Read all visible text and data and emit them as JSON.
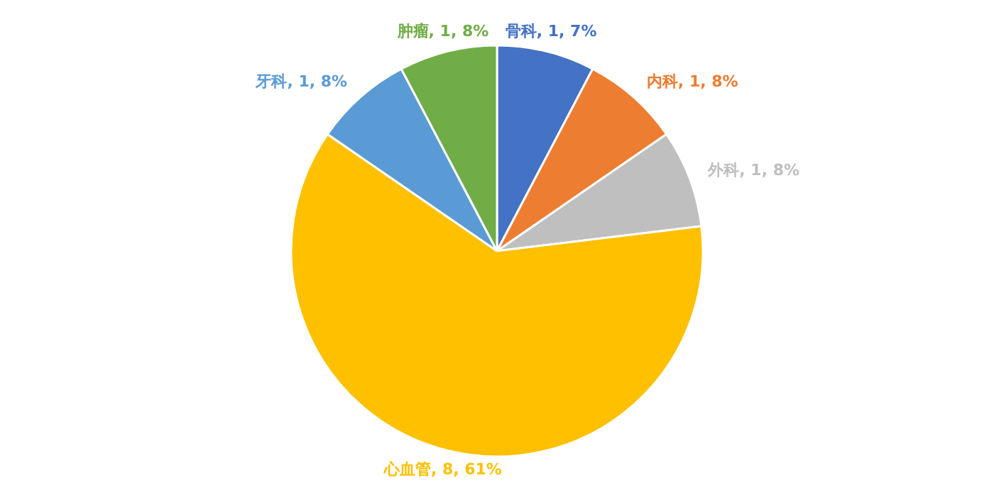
{
  "chart_data": {
    "type": "pie",
    "categories": [
      "骨科",
      "内科",
      "外科",
      "心血管",
      "牙科",
      "肿瘤"
    ],
    "values": [
      1,
      1,
      1,
      8,
      1,
      1
    ],
    "value_labels": [
      "1, 7%",
      "1, 8%",
      "1, 8%",
      "8, 61%",
      "1, 8%",
      "1, 8%"
    ],
    "colors": [
      "#4472c4",
      "#ed7d31",
      "#bfbfbf",
      "#ffc000",
      "#5b9bd5",
      "#70ad47"
    ],
    "legend": false
  }
}
